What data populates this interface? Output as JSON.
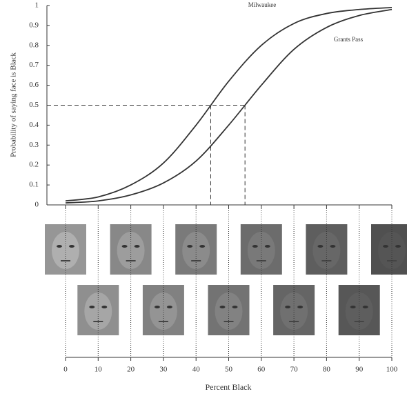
{
  "chart_data": {
    "type": "line",
    "y_label": "Probability of saying face is Black",
    "x_label": "Percent Black",
    "x": [
      0,
      10,
      20,
      30,
      40,
      50,
      60,
      70,
      80,
      90,
      100
    ],
    "series": [
      {
        "name": "Milwaukee",
        "color": "#333333",
        "values": [
          0.02,
          0.04,
          0.1,
          0.21,
          0.4,
          0.62,
          0.8,
          0.91,
          0.96,
          0.98,
          0.99
        ]
      },
      {
        "name": "Grants Pass",
        "color": "#333333",
        "values": [
          0.01,
          0.02,
          0.05,
          0.11,
          0.22,
          0.4,
          0.6,
          0.78,
          0.89,
          0.95,
          0.98
        ]
      }
    ],
    "reference_lines": {
      "y": 0.5,
      "x": [
        44.5,
        55
      ]
    },
    "xlim": [
      0,
      100
    ],
    "xticks": [
      0,
      10,
      20,
      30,
      40,
      50,
      60,
      70,
      80,
      90,
      100
    ],
    "ylim": [
      0,
      1
    ],
    "yticks": [
      0,
      0.1,
      0.2,
      0.3,
      0.4,
      0.5,
      0.6,
      0.7,
      0.8,
      0.9,
      1
    ]
  }
}
